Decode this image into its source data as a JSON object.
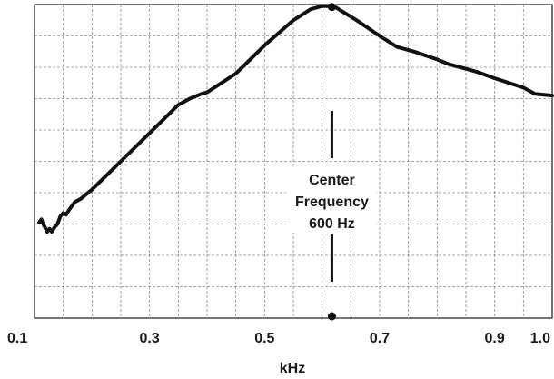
{
  "chart_data": {
    "type": "line",
    "title": "",
    "xlabel": "kHz",
    "ylabel": "",
    "xlim": [
      0.1,
      1.0
    ],
    "x_ticks": [
      {
        "value": 0.1,
        "label": "0.1"
      },
      {
        "value": 0.3,
        "label": "0.3"
      },
      {
        "value": 0.5,
        "label": "0.5"
      },
      {
        "value": 0.7,
        "label": "0.7"
      },
      {
        "value": 0.9,
        "label": "0.9"
      },
      {
        "value": 1.0,
        "label": "1.0"
      }
    ],
    "ylim": [
      0,
      10
    ],
    "grid": true,
    "series": [
      {
        "x": [
          0.108,
          0.112,
          0.115,
          0.118,
          0.122,
          0.126,
          0.13,
          0.135,
          0.14,
          0.145,
          0.15,
          0.155,
          0.16,
          0.17,
          0.18,
          0.19,
          0.2,
          0.25,
          0.3,
          0.35,
          0.37,
          0.39,
          0.4,
          0.45,
          0.5,
          0.55,
          0.58,
          0.6,
          0.62,
          0.66,
          0.7,
          0.73,
          0.76,
          0.8,
          0.82,
          0.85,
          0.87,
          0.9,
          0.95,
          0.97,
          1.0
        ],
        "y": [
          3.05,
          3.15,
          3.0,
          2.9,
          2.75,
          2.85,
          2.75,
          2.9,
          3.0,
          3.25,
          3.35,
          3.3,
          3.45,
          3.7,
          3.8,
          3.95,
          4.1,
          5.0,
          5.9,
          6.8,
          7.0,
          7.15,
          7.2,
          7.8,
          8.7,
          9.5,
          9.85,
          9.95,
          9.95,
          9.5,
          9.0,
          8.65,
          8.5,
          8.25,
          8.1,
          7.95,
          7.85,
          7.65,
          7.35,
          7.15,
          7.1
        ]
      }
    ],
    "peak": {
      "x": 0.617,
      "y": 9.95
    },
    "marker_line": {
      "x": 0.617
    },
    "annotation": {
      "lines": [
        "Center",
        "Frequency",
        "600 Hz"
      ]
    }
  }
}
